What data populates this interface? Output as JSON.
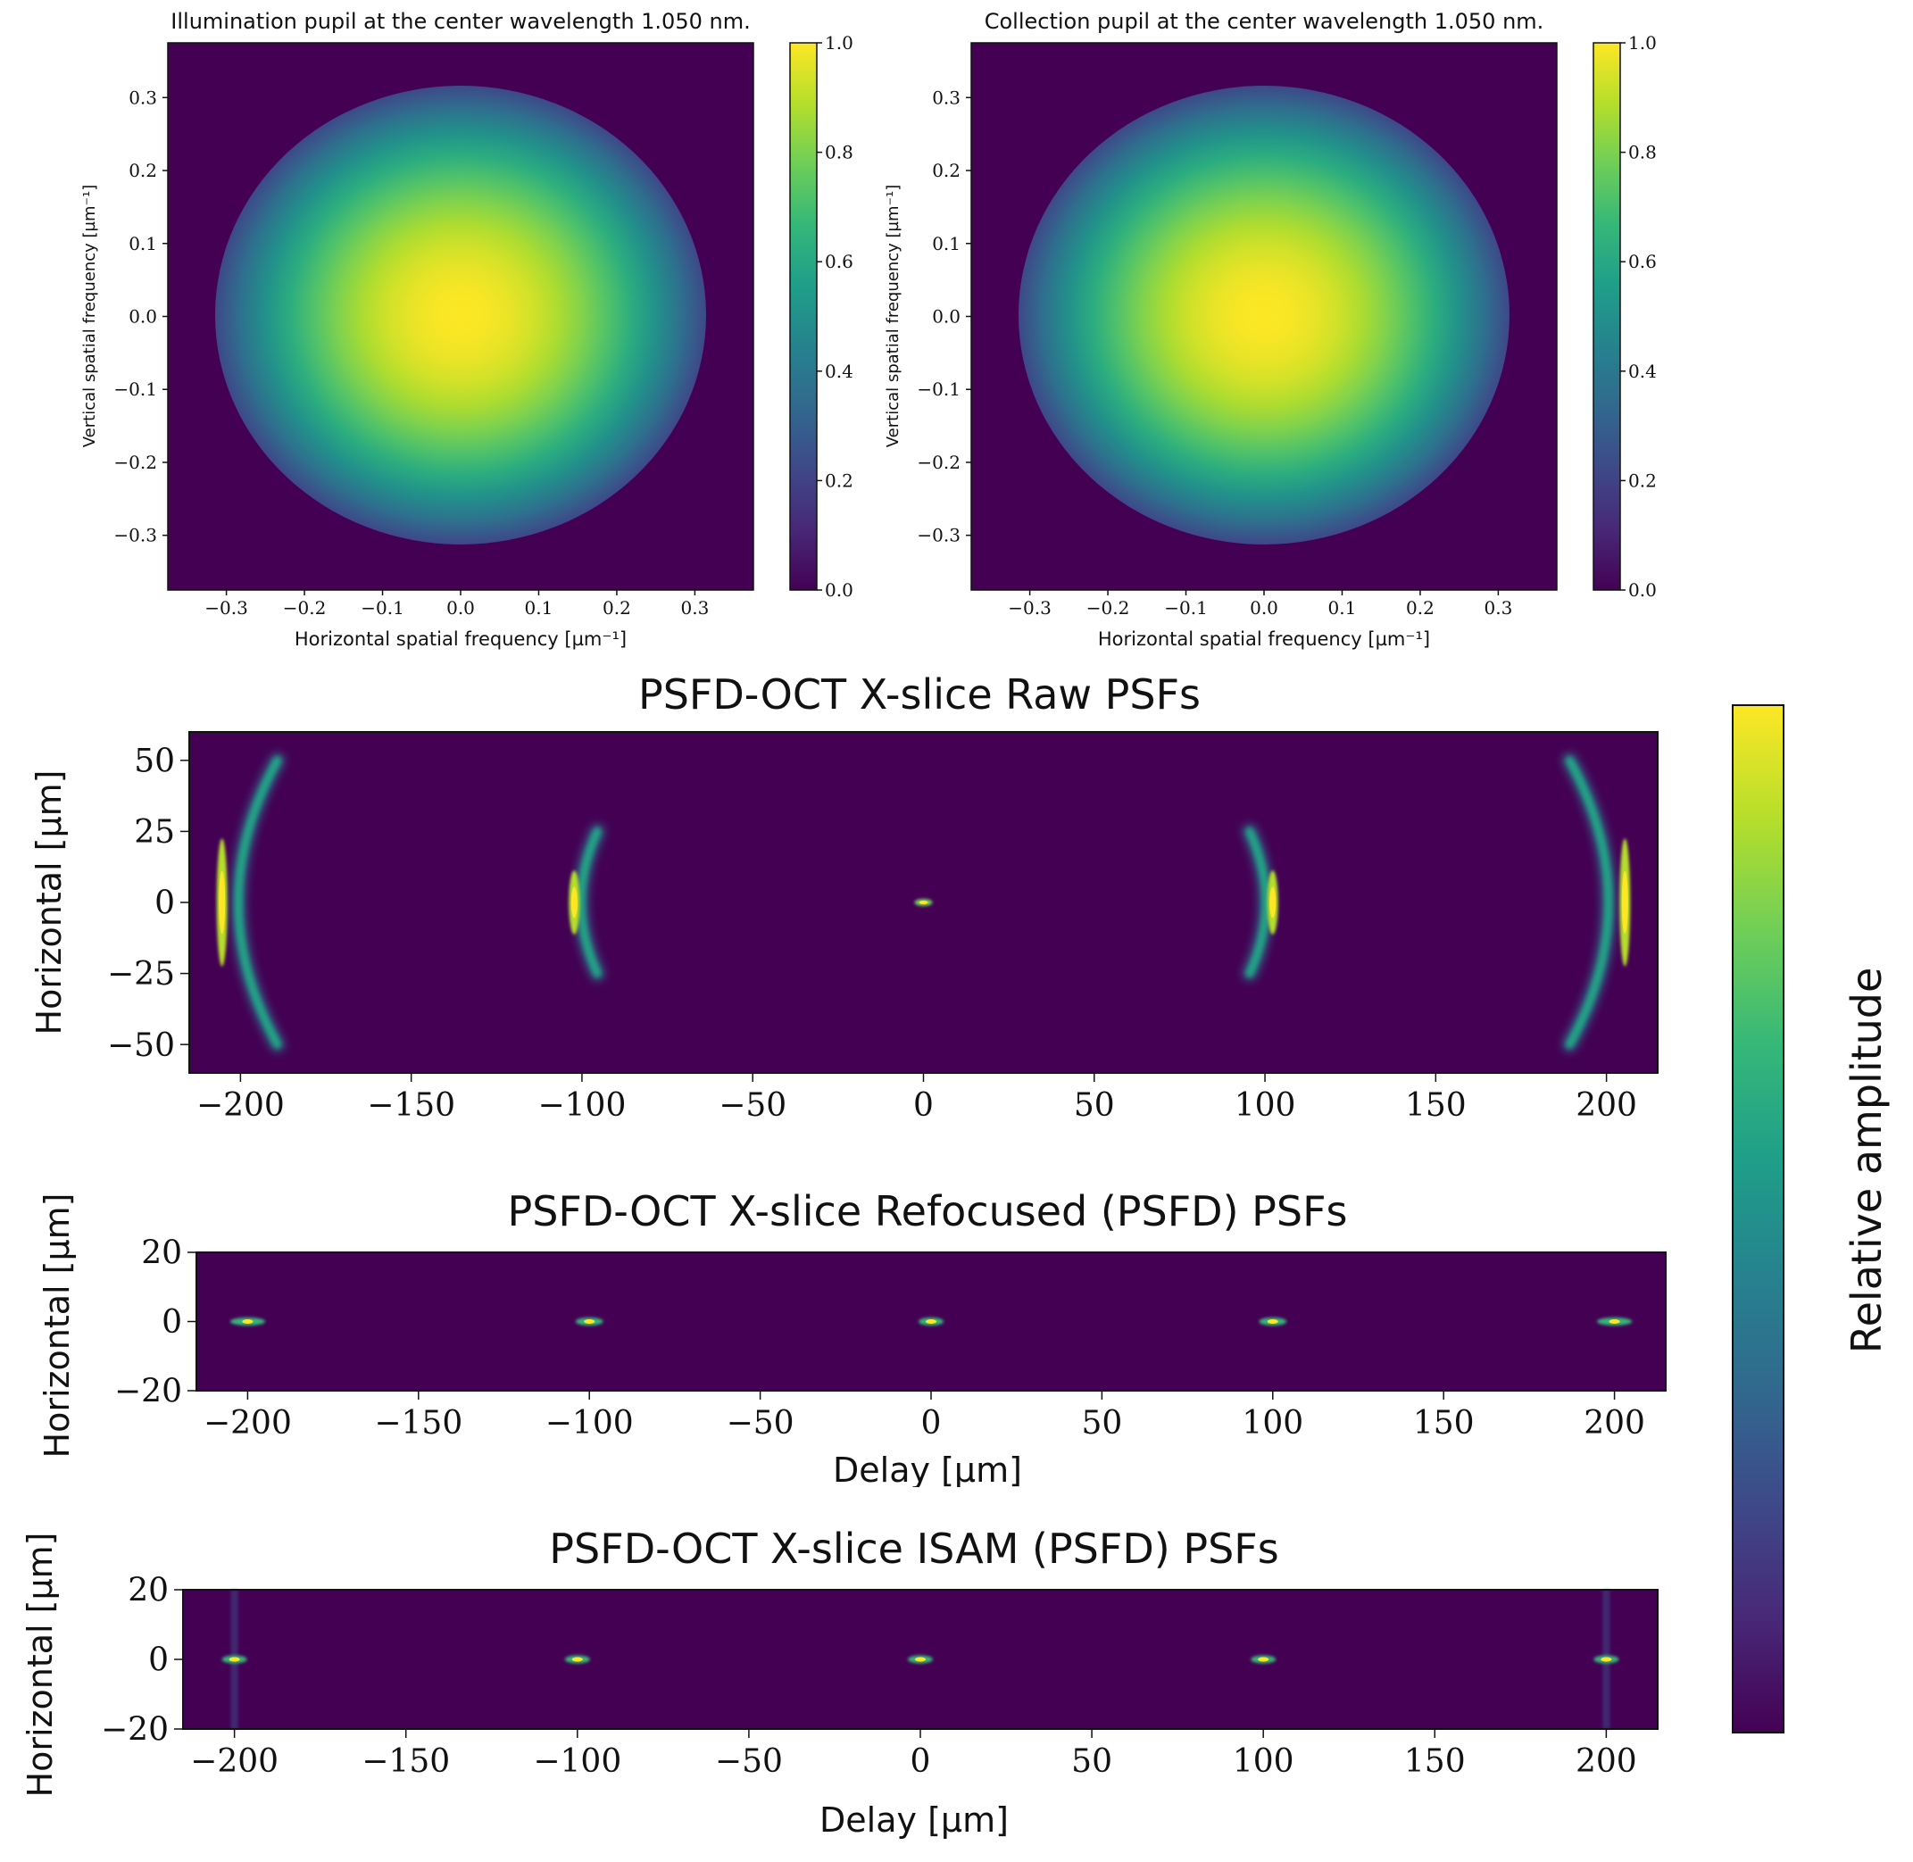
{
  "colors": {
    "viridis_stops": [
      "#440154",
      "#482878",
      "#3e4989",
      "#31688e",
      "#26828e",
      "#1f9e89",
      "#35b779",
      "#6ece58",
      "#b5de2b",
      "#fde725"
    ],
    "background": "#440154",
    "axis": "#111111"
  },
  "chart_data": [
    {
      "type": "heatmap",
      "title": "Illumination pupil at the center wavelength 1.050 nm.",
      "xlabel": "Horizontal spatial frequency [µm⁻¹]",
      "ylabel": "Vertical spatial frequency [µm⁻¹]",
      "xlim": [
        -0.375,
        0.375
      ],
      "ylim": [
        -0.375,
        0.375
      ],
      "xticks": [
        -0.3,
        -0.2,
        -0.1,
        0.0,
        0.1,
        0.2,
        0.3
      ],
      "yticks": [
        0.3,
        0.2,
        0.1,
        0.0,
        -0.1,
        -0.2,
        -0.3
      ],
      "xtick_labels": [
        "−0.3",
        "−0.2",
        "−0.1",
        "0.0",
        "0.1",
        "0.2",
        "0.3"
      ],
      "ytick_labels": [
        "0.3",
        "0.2",
        "0.1",
        "0.0",
        "−0.1",
        "−0.2",
        "−0.3"
      ],
      "pupil": {
        "center": [
          0.0,
          0.0
        ],
        "radius": 0.315,
        "peak": 1.0,
        "edge_value": 0.22
      },
      "colorbar": {
        "range": [
          0.0,
          1.0
        ],
        "ticks": [
          "1.0",
          "0.8",
          "0.6",
          "0.4",
          "0.2",
          "0.0"
        ]
      }
    },
    {
      "type": "heatmap",
      "title": "Collection pupil at the center wavelength 1.050 nm.",
      "xlabel": "Horizontal spatial frequency [µm⁻¹]",
      "ylabel": "Vertical spatial frequency [µm⁻¹]",
      "xlim": [
        -0.375,
        0.375
      ],
      "ylim": [
        -0.375,
        0.375
      ],
      "xticks": [
        -0.3,
        -0.2,
        -0.1,
        0.0,
        0.1,
        0.2,
        0.3
      ],
      "yticks": [
        0.3,
        0.2,
        0.1,
        0.0,
        -0.1,
        -0.2,
        -0.3
      ],
      "xtick_labels": [
        "−0.3",
        "−0.2",
        "−0.1",
        "0.0",
        "0.1",
        "0.2",
        "0.3"
      ],
      "ytick_labels": [
        "0.3",
        "0.2",
        "0.1",
        "0.0",
        "−0.1",
        "−0.2",
        "−0.3"
      ],
      "pupil": {
        "center": [
          0.0,
          0.0
        ],
        "radius": 0.315,
        "peak": 1.0,
        "edge_value": 0.22
      },
      "colorbar": {
        "range": [
          0.0,
          1.0
        ],
        "ticks": [
          "1.0",
          "0.8",
          "0.6",
          "0.4",
          "0.2",
          "0.0"
        ]
      }
    },
    {
      "type": "heatmap",
      "title": "PSFD-OCT X-slice Raw PSFs",
      "xlabel": "",
      "ylabel": "Horizontal [µm]",
      "xlim": [
        -215,
        215
      ],
      "ylim": [
        -60,
        60
      ],
      "xticks": [
        -200,
        -150,
        -100,
        -50,
        0,
        50,
        100,
        150,
        200
      ],
      "yticks": [
        50,
        25,
        0,
        -25,
        -50
      ],
      "xtick_labels": [
        "−200",
        "−150",
        "−100",
        "−50",
        "0",
        "50",
        "100",
        "150",
        "200"
      ],
      "ytick_labels": [
        "50",
        "25",
        "0",
        "−25",
        "−50"
      ],
      "psfs": [
        {
          "delay": -200,
          "half_height": 50,
          "curvature": -12
        },
        {
          "delay": -100,
          "half_height": 25,
          "curvature": -5
        },
        {
          "delay": 0,
          "half_height": 1.5,
          "curvature": 0
        },
        {
          "delay": 100,
          "half_height": 25,
          "curvature": 5
        },
        {
          "delay": 200,
          "half_height": 50,
          "curvature": 12
        }
      ]
    },
    {
      "type": "heatmap",
      "title": "PSFD-OCT X-slice Refocused (PSFD) PSFs",
      "xlabel": "Delay [µm]",
      "ylabel": "Horizontal [µm]",
      "xlim": [
        -215,
        215
      ],
      "ylim": [
        -20,
        20
      ],
      "xticks": [
        -200,
        -150,
        -100,
        -50,
        0,
        50,
        100,
        150,
        200
      ],
      "yticks": [
        20,
        0,
        -20
      ],
      "xtick_labels": [
        "−200",
        "−150",
        "−100",
        "−50",
        "0",
        "50",
        "100",
        "150",
        "200"
      ],
      "ytick_labels": [
        "20",
        "0",
        "−20"
      ],
      "psfs": [
        {
          "delay": -200,
          "spread": 1.4
        },
        {
          "delay": -100,
          "spread": 1.1
        },
        {
          "delay": 0,
          "spread": 1.0
        },
        {
          "delay": 100,
          "spread": 1.1
        },
        {
          "delay": 200,
          "spread": 1.4
        }
      ]
    },
    {
      "type": "heatmap",
      "title": "PSFD-OCT X-slice ISAM (PSFD) PSFs",
      "xlabel": "Delay [µm]",
      "ylabel": "Horizontal [µm]",
      "xlim": [
        -215,
        215
      ],
      "ylim": [
        -20,
        20
      ],
      "xticks": [
        -200,
        -150,
        -100,
        -50,
        0,
        50,
        100,
        150,
        200
      ],
      "yticks": [
        20,
        0,
        -20
      ],
      "xtick_labels": [
        "−200",
        "−150",
        "−100",
        "−50",
        "0",
        "50",
        "100",
        "150",
        "200"
      ],
      "ytick_labels": [
        "20",
        "0",
        "−20"
      ],
      "psfs": [
        {
          "delay": -200,
          "spread": 1.0
        },
        {
          "delay": -100,
          "spread": 1.0
        },
        {
          "delay": 0,
          "spread": 1.0
        },
        {
          "delay": 100,
          "spread": 1.0
        },
        {
          "delay": 200,
          "spread": 1.0
        }
      ]
    }
  ],
  "shared_colorbar": {
    "label": "Relative amplitude"
  }
}
